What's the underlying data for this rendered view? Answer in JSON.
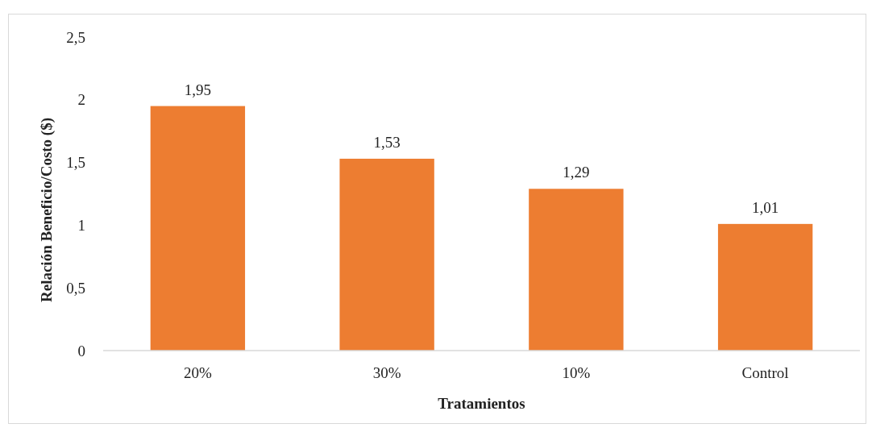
{
  "chart_data": {
    "type": "bar",
    "xlabel": "Tratamientos",
    "ylabel": "Relación Beneficio/Costo  ($)",
    "categories": [
      "20%",
      "30%",
      "10%",
      "Control"
    ],
    "values": [
      1.95,
      1.53,
      1.29,
      1.01
    ],
    "value_labels": [
      "1,95",
      "1,53",
      "1,29",
      "1,01"
    ],
    "color": "#ed7d31",
    "ylim": [
      0,
      2.5
    ],
    "yticks": [
      0,
      {
        "value": 0.5,
        "label": "0,5"
      },
      1,
      {
        "value": 1.5,
        "label": "1,5"
      },
      2,
      {
        "value": 2.5,
        "label": "2,5"
      }
    ],
    "grid": false
  }
}
